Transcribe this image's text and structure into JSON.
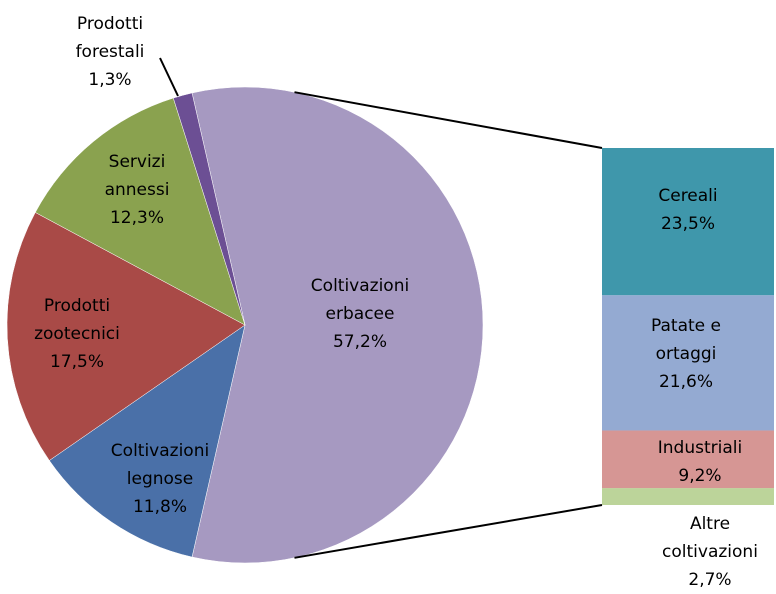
{
  "chart_data": {
    "type": "bar-of-pie",
    "pie": {
      "categories": [
        "Coltivazioni erbacee",
        "Coltivazioni legnose",
        "Prodotti zootecnici",
        "Servizi annessi",
        "Prodotti forestali"
      ],
      "values": [
        57.2,
        11.8,
        17.5,
        12.3,
        1.3
      ],
      "value_labels": [
        "57,2%",
        "11,8%",
        "17,5%",
        "12,3%",
        "1,3%"
      ],
      "colors": [
        "#a699c1",
        "#4a70a8",
        "#a94a47",
        "#8aa24f",
        "#6c4f94"
      ]
    },
    "bar": {
      "categories": [
        "Altre coltivazioni",
        "Industriali",
        "Patate e ortaggi",
        "Cereali"
      ],
      "values": [
        2.7,
        9.2,
        21.6,
        23.5
      ],
      "value_labels": [
        "2,7%",
        "9,2%",
        "21,6%",
        "23,5%"
      ],
      "colors": [
        "#bcd49a",
        "#d69694",
        "#94aad2",
        "#3f97ab"
      ]
    }
  }
}
